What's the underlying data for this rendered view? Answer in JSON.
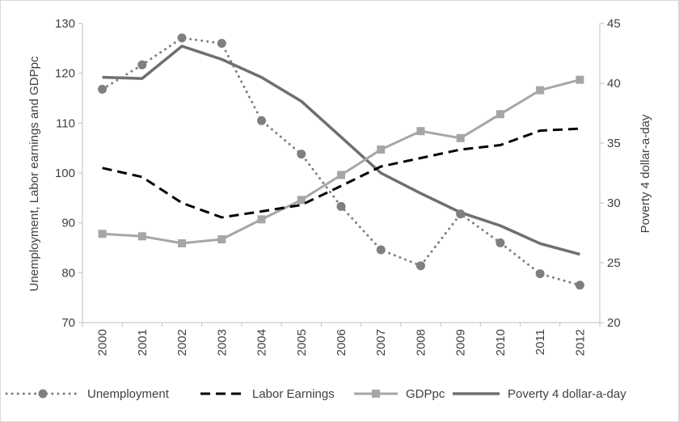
{
  "chart_data": {
    "type": "line",
    "title": "",
    "x": [
      "2000",
      "2001",
      "2002",
      "2003",
      "2004",
      "2005",
      "2006",
      "2007",
      "2008",
      "2009",
      "2010",
      "2011",
      "2012"
    ],
    "y_left": {
      "label": "Unemployment, Labor earnings and GDPpc",
      "min": 70,
      "max": 130,
      "ticks": [
        70,
        80,
        90,
        100,
        110,
        120,
        130
      ]
    },
    "y_right": {
      "label": "Poverty 4 dollar-a-day",
      "min": 20,
      "max": 45,
      "ticks": [
        20,
        25,
        30,
        35,
        40,
        45
      ]
    },
    "grid": false,
    "legend": "bottom",
    "series": [
      {
        "name": "Unemployment",
        "axis": "left",
        "style": "dotted-circle",
        "color": "#7f7f7f",
        "values": [
          116.8,
          121.7,
          127.1,
          126.0,
          110.5,
          103.8,
          93.3,
          84.6,
          81.4,
          91.8,
          86.0,
          79.8,
          77.5
        ]
      },
      {
        "name": "Labor Earnings",
        "axis": "left",
        "style": "dashed",
        "color": "#000000",
        "values": [
          101.0,
          99.2,
          94.0,
          91.1,
          92.3,
          93.6,
          97.4,
          101.3,
          103.0,
          104.7,
          105.6,
          108.5,
          108.9
        ]
      },
      {
        "name": "GDPpc",
        "axis": "left",
        "style": "solid-square",
        "color": "#a6a6a6",
        "values": [
          87.8,
          87.3,
          85.9,
          86.7,
          90.7,
          94.6,
          99.6,
          104.7,
          108.4,
          107.0,
          111.8,
          116.6,
          118.7
        ]
      },
      {
        "name": "Poverty 4 dollar-a-day",
        "axis": "right",
        "style": "solid",
        "color": "#6f6f6f",
        "values": [
          40.5,
          40.4,
          43.1,
          42.0,
          40.5,
          38.5,
          35.5,
          32.5,
          30.8,
          29.2,
          28.1,
          26.6,
          25.7
        ]
      }
    ]
  }
}
